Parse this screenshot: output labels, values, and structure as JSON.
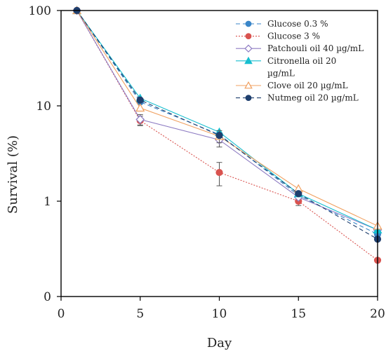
{
  "chart_data": {
    "type": "line",
    "title": "",
    "xlabel": "Day",
    "ylabel": "Survival (%)",
    "x_ticks": [
      0,
      5,
      10,
      15,
      20
    ],
    "y_ticks": [
      {
        "value": 0.1,
        "label": "0"
      },
      {
        "value": 1,
        "label": "1"
      },
      {
        "value": 10,
        "label": "10"
      },
      {
        "value": 100,
        "label": "100"
      }
    ],
    "xlim": [
      0,
      20
    ],
    "ylim": [
      0.1,
      100
    ],
    "y_scale": "log",
    "grid": false,
    "legend_position": "top-right",
    "x": [
      1,
      5,
      10,
      15,
      20
    ],
    "series": [
      {
        "name": "Glucose 0.3 %",
        "color": "#3a86c8",
        "line": "dashed",
        "marker": "circle",
        "filled": true,
        "values": [
          100,
          11,
          5.0,
          1.15,
          0.45
        ]
      },
      {
        "name": "Glucose 3 %",
        "color": "#d9534f",
        "line": "dotted",
        "marker": "circle",
        "filled": true,
        "values": [
          100,
          7.0,
          2.0,
          1.0,
          0.24
        ],
        "errors": [
          0,
          0.8,
          0.55,
          0.1,
          0
        ]
      },
      {
        "name": "Patchouli oil 40 µg/mL",
        "color": "#8e7cc3",
        "line": "solid",
        "marker": "diamond",
        "filled": false,
        "values": [
          100,
          7.2,
          4.4,
          1.1,
          0.5
        ],
        "errors": [
          0,
          0.9,
          0.7,
          0,
          0
        ]
      },
      {
        "name": "Citronella oil 20 µg/mL",
        "color": "#17becf",
        "line": "solid",
        "marker": "triangle",
        "filled": true,
        "values": [
          100,
          12,
          5.3,
          1.2,
          0.5
        ]
      },
      {
        "name": "Clove oil 20 µg/mL",
        "color": "#f0a060",
        "line": "solid",
        "marker": "triangle",
        "filled": false,
        "values": [
          100,
          9.5,
          4.8,
          1.35,
          0.55
        ],
        "errors": [
          0,
          0,
          0.7,
          0,
          0
        ]
      },
      {
        "name": "Nutmeg oil 20 µg/mL",
        "color": "#1f3f6e",
        "line": "dashed",
        "marker": "circle",
        "filled": true,
        "values": [
          100,
          11.5,
          4.9,
          1.2,
          0.4
        ]
      }
    ],
    "legend_lines": [
      {
        "text": "Glucose 0.3 %",
        "series": 0
      },
      {
        "text": "Glucose 3 %",
        "series": 1
      },
      {
        "text": "Patchouli oil 40 µg/mL",
        "series": 2
      },
      {
        "text": "Citronella oil 20",
        "series": 3
      },
      {
        "text": "µg/mL",
        "series": null
      },
      {
        "text": "Clove oil 20 µg/mL",
        "series": 4
      },
      {
        "text": "Nutmeg oil 20 µg/mL",
        "series": 5
      }
    ]
  }
}
